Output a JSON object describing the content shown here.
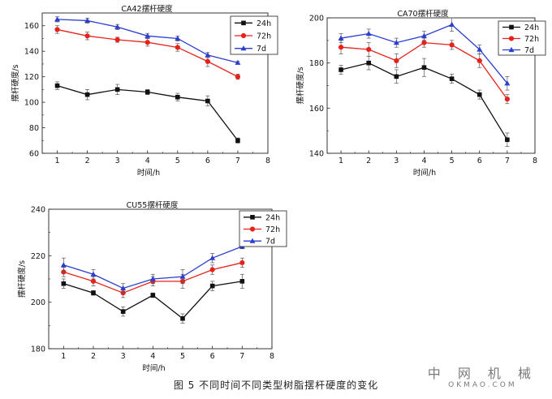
{
  "chart_data": [
    {
      "type": "line",
      "title": "CA42摆杆硬度",
      "xlabel": "时间/h",
      "ylabel": "摆杆硬度/s",
      "x": [
        1,
        2,
        3,
        4,
        5,
        6,
        7
      ],
      "xlim": [
        0.5,
        8
      ],
      "xticks": [
        1,
        2,
        3,
        4,
        5,
        6,
        7,
        8
      ],
      "ylim": [
        60,
        170
      ],
      "yticks": [
        60,
        80,
        100,
        120,
        140,
        160
      ],
      "legend_position": "top-right",
      "series": [
        {
          "name": "24h",
          "color": "#111111",
          "marker": "square",
          "values": [
            113,
            106,
            110,
            108,
            104,
            101,
            70
          ],
          "errors": [
            3,
            4,
            4,
            2,
            3,
            4,
            2
          ]
        },
        {
          "name": "72h",
          "color": "#e8221b",
          "marker": "circle",
          "values": [
            157,
            152,
            149,
            147,
            143,
            132,
            120
          ],
          "errors": [
            3,
            3,
            2,
            3,
            3,
            4,
            2
          ]
        },
        {
          "name": "7d",
          "color": "#2b3ecf",
          "marker": "triangle",
          "values": [
            165,
            164,
            159,
            152,
            150,
            137,
            131
          ],
          "errors": [
            2,
            2,
            2,
            2,
            2,
            2,
            1
          ]
        }
      ]
    },
    {
      "type": "line",
      "title": "CA70摆杆硬度",
      "xlabel": "时间/h",
      "ylabel": "摆杆硬度/s",
      "x": [
        1,
        2,
        3,
        4,
        5,
        6,
        7
      ],
      "xlim": [
        0.5,
        8
      ],
      "xticks": [
        1,
        2,
        3,
        4,
        5,
        6,
        7,
        8
      ],
      "ylim": [
        140,
        200
      ],
      "yticks": [
        140,
        160,
        180,
        200
      ],
      "legend_position": "top-right",
      "series": [
        {
          "name": "24h",
          "color": "#111111",
          "marker": "square",
          "values": [
            177,
            180,
            174,
            178,
            173,
            166,
            146
          ],
          "errors": [
            2,
            3,
            3,
            4,
            2,
            2,
            3
          ]
        },
        {
          "name": "72h",
          "color": "#e8221b",
          "marker": "circle",
          "values": [
            187,
            186,
            181,
            189,
            188,
            181,
            164
          ],
          "errors": [
            3,
            3,
            3,
            2,
            2,
            3,
            2
          ]
        },
        {
          "name": "7d",
          "color": "#2b3ecf",
          "marker": "triangle",
          "values": [
            191,
            193,
            189,
            192,
            197,
            186,
            171
          ],
          "errors": [
            2,
            2,
            2,
            2,
            3,
            2,
            3
          ]
        }
      ]
    },
    {
      "type": "line",
      "title": "CU55摆杆硬度",
      "xlabel": "时间/h",
      "ylabel": "摆杆硬度/s",
      "x": [
        1,
        2,
        3,
        4,
        5,
        6,
        7
      ],
      "xlim": [
        0.5,
        8
      ],
      "xticks": [
        1,
        2,
        3,
        4,
        5,
        6,
        7,
        8
      ],
      "ylim": [
        180,
        240
      ],
      "yticks": [
        180,
        200,
        220,
        240
      ],
      "legend_position": "top-right",
      "series": [
        {
          "name": "24h",
          "color": "#111111",
          "marker": "square",
          "values": [
            208,
            204,
            196,
            203,
            193,
            207,
            209
          ],
          "errors": [
            2,
            1,
            2,
            1,
            2,
            2,
            3
          ]
        },
        {
          "name": "72h",
          "color": "#e8221b",
          "marker": "circle",
          "values": [
            213,
            209,
            204,
            209,
            209,
            214,
            217
          ],
          "errors": [
            2,
            2,
            2,
            2,
            3,
            2,
            2
          ]
        },
        {
          "name": "7d",
          "color": "#2b3ecf",
          "marker": "triangle",
          "values": [
            216,
            212,
            206,
            210,
            211,
            219,
            224
          ],
          "errors": [
            3,
            2,
            2,
            2,
            3,
            2,
            1
          ]
        }
      ]
    }
  ],
  "caption": "图 5 不同时间不同类型树脂摆杆硬度的变化",
  "watermark": {
    "cn": "中 网 机 械",
    "en": "OKMAO.COM"
  }
}
